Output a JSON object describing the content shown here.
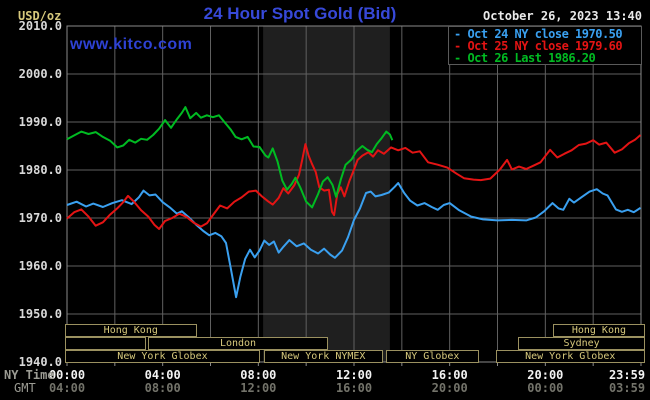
{
  "header": {
    "units_label": "USD/oz",
    "title": "24 Hour Spot Gold (Bid)",
    "datetime": "October 26, 2023 13:40",
    "watermark": "www.kitco.com"
  },
  "colors": {
    "background": "#000000",
    "grid": "#606060",
    "plot_border": "#8a8a8a",
    "highlight_band": "#1f1f1f",
    "blue": "#3aa0f0",
    "red": "#e41414",
    "green": "#00bb22",
    "khaki_text": "#d6c87c",
    "khaki_border": "#9b9160"
  },
  "legend": {
    "entries": [
      {
        "name": "oct-24-close",
        "label": "- Oct 24 NY close 1970.50",
        "color": "#3aa0f0"
      },
      {
        "name": "oct-25-close",
        "label": "- Oct 25 NY close 1979.60",
        "color": "#e41414"
      },
      {
        "name": "oct-26-last",
        "label": "- Oct 26 Last 1986.20",
        "color": "#00bb22"
      }
    ]
  },
  "x_axis": {
    "ny_caption": "NY Time",
    "gmt_caption": "GMT",
    "ticks": [
      {
        "ny": "00:00",
        "gmt": "04:00",
        "hour": 0
      },
      {
        "ny": "04:00",
        "gmt": "08:00",
        "hour": 4
      },
      {
        "ny": "08:00",
        "gmt": "12:00",
        "hour": 8
      },
      {
        "ny": "12:00",
        "gmt": "16:00",
        "hour": 12
      },
      {
        "ny": "16:00",
        "gmt": "20:00",
        "hour": 16
      },
      {
        "ny": "20:00",
        "gmt": "00:00",
        "hour": 20
      },
      {
        "ny": "23:59",
        "gmt": "03:59",
        "hour": 23.983
      }
    ]
  },
  "y_axis": {
    "ticks": [
      {
        "label": "2010.0",
        "value": 2010
      },
      {
        "label": "2000.0",
        "value": 2000
      },
      {
        "label": "1990.0",
        "value": 1990
      },
      {
        "label": "1980.0",
        "value": 1980
      },
      {
        "label": "1970.0",
        "value": 1970
      },
      {
        "label": "1960.0",
        "value": 1960
      },
      {
        "label": "1950.0",
        "value": 1950
      },
      {
        "label": "1940.0",
        "value": 1940
      }
    ]
  },
  "sessions": [
    {
      "row": 0,
      "label": "Hong Kong",
      "start": 0,
      "end": 5.5
    },
    {
      "row": 0,
      "label": "Hong Kong",
      "start": 20.4,
      "end": 24.25
    },
    {
      "row": 1,
      "label": "",
      "start": 0,
      "end": 3.4
    },
    {
      "row": 1,
      "label": "London",
      "start": 3.47,
      "end": 11.0
    },
    {
      "row": 1,
      "label": "Sydney",
      "start": 18.95,
      "end": 24.25
    },
    {
      "row": 2,
      "label": "New York Globex",
      "start": 0,
      "end": 8.15
    },
    {
      "row": 2,
      "label": "New York NYMEX",
      "start": 8.3,
      "end": 13.3
    },
    {
      "row": 2,
      "label": "NY Globex",
      "start": 13.42,
      "end": 17.3
    },
    {
      "row": 2,
      "label": "New York Globex",
      "start": 18.0,
      "end": 24.25
    }
  ],
  "chart_data": {
    "type": "line",
    "title": "24 Hour Spot Gold (Bid)",
    "xlabel": "NY Time (hours)",
    "ylabel": "USD/oz",
    "xlim_hours": [
      0,
      24
    ],
    "ylim": [
      1940,
      2010
    ],
    "x_grid_interval_hours": 2,
    "y_grid_interval": 10,
    "highlight_hours": [
      8.2,
      13.5
    ],
    "grid": true,
    "legend_position": "top-right",
    "series": [
      {
        "name": "Oct 24 (NY close 1970.50)",
        "color": "#3aa0f0",
        "points": [
          [
            0,
            1972.7
          ],
          [
            0.4,
            1973.4
          ],
          [
            0.8,
            1972.4
          ],
          [
            1.1,
            1973.0
          ],
          [
            1.5,
            1972.3
          ],
          [
            1.9,
            1973.1
          ],
          [
            2.3,
            1973.7
          ],
          [
            2.7,
            1972.9
          ],
          [
            3.0,
            1974.3
          ],
          [
            3.2,
            1975.7
          ],
          [
            3.45,
            1974.7
          ],
          [
            3.7,
            1974.9
          ],
          [
            4.0,
            1973.3
          ],
          [
            4.3,
            1972.2
          ],
          [
            4.6,
            1970.9
          ],
          [
            4.8,
            1971.4
          ],
          [
            5.1,
            1970.1
          ],
          [
            5.4,
            1968.6
          ],
          [
            5.7,
            1967.3
          ],
          [
            5.95,
            1966.4
          ],
          [
            6.2,
            1966.9
          ],
          [
            6.45,
            1966.2
          ],
          [
            6.65,
            1964.8
          ],
          [
            6.85,
            1959.5
          ],
          [
            7.07,
            1953.5
          ],
          [
            7.25,
            1957.8
          ],
          [
            7.45,
            1961.5
          ],
          [
            7.65,
            1963.4
          ],
          [
            7.85,
            1961.8
          ],
          [
            8.05,
            1963.2
          ],
          [
            8.25,
            1965.3
          ],
          [
            8.45,
            1964.4
          ],
          [
            8.65,
            1965.1
          ],
          [
            8.85,
            1962.8
          ],
          [
            9.05,
            1964.0
          ],
          [
            9.3,
            1965.4
          ],
          [
            9.6,
            1964.1
          ],
          [
            9.9,
            1964.7
          ],
          [
            10.2,
            1963.4
          ],
          [
            10.5,
            1962.6
          ],
          [
            10.75,
            1963.6
          ],
          [
            11.0,
            1962.4
          ],
          [
            11.2,
            1961.7
          ],
          [
            11.5,
            1963.2
          ],
          [
            11.75,
            1966.0
          ],
          [
            12.0,
            1969.6
          ],
          [
            12.25,
            1972.0
          ],
          [
            12.5,
            1975.2
          ],
          [
            12.7,
            1975.5
          ],
          [
            12.9,
            1974.5
          ],
          [
            13.15,
            1974.8
          ],
          [
            13.45,
            1975.3
          ],
          [
            13.7,
            1976.5
          ],
          [
            13.85,
            1977.3
          ],
          [
            14.1,
            1975.2
          ],
          [
            14.35,
            1973.6
          ],
          [
            14.65,
            1972.6
          ],
          [
            14.95,
            1973.1
          ],
          [
            15.25,
            1972.3
          ],
          [
            15.5,
            1971.7
          ],
          [
            15.75,
            1972.7
          ],
          [
            16.0,
            1973.1
          ],
          [
            16.4,
            1971.6
          ],
          [
            16.9,
            1970.3
          ],
          [
            17.4,
            1969.7
          ],
          [
            18.0,
            1969.5
          ],
          [
            18.6,
            1969.6
          ],
          [
            19.2,
            1969.5
          ],
          [
            19.6,
            1970.1
          ],
          [
            19.95,
            1971.4
          ],
          [
            20.3,
            1973.1
          ],
          [
            20.55,
            1972.0
          ],
          [
            20.75,
            1971.7
          ],
          [
            21.0,
            1974.0
          ],
          [
            21.2,
            1973.2
          ],
          [
            21.5,
            1974.3
          ],
          [
            21.85,
            1975.5
          ],
          [
            22.15,
            1976.0
          ],
          [
            22.4,
            1975.1
          ],
          [
            22.6,
            1974.7
          ],
          [
            22.95,
            1971.8
          ],
          [
            23.2,
            1971.3
          ],
          [
            23.45,
            1971.7
          ],
          [
            23.7,
            1971.2
          ],
          [
            23.98,
            1972.1
          ]
        ]
      },
      {
        "name": "Oct 25 (NY close 1979.60)",
        "color": "#e41414",
        "points": [
          [
            0,
            1969.9
          ],
          [
            0.3,
            1971.2
          ],
          [
            0.6,
            1971.8
          ],
          [
            0.9,
            1970.3
          ],
          [
            1.2,
            1968.4
          ],
          [
            1.5,
            1969.1
          ],
          [
            1.8,
            1970.7
          ],
          [
            2.1,
            1972.0
          ],
          [
            2.35,
            1973.3
          ],
          [
            2.55,
            1974.6
          ],
          [
            2.8,
            1973.4
          ],
          [
            3.1,
            1971.6
          ],
          [
            3.4,
            1970.3
          ],
          [
            3.65,
            1968.6
          ],
          [
            3.85,
            1967.7
          ],
          [
            4.1,
            1969.4
          ],
          [
            4.4,
            1970.0
          ],
          [
            4.7,
            1970.9
          ],
          [
            5.0,
            1970.2
          ],
          [
            5.3,
            1969.0
          ],
          [
            5.6,
            1968.2
          ],
          [
            5.85,
            1968.9
          ],
          [
            6.1,
            1970.6
          ],
          [
            6.4,
            1972.6
          ],
          [
            6.7,
            1972.0
          ],
          [
            7.0,
            1973.4
          ],
          [
            7.3,
            1974.3
          ],
          [
            7.6,
            1975.5
          ],
          [
            7.9,
            1975.7
          ],
          [
            8.15,
            1974.5
          ],
          [
            8.4,
            1973.5
          ],
          [
            8.6,
            1972.8
          ],
          [
            8.85,
            1974.2
          ],
          [
            9.05,
            1976.2
          ],
          [
            9.25,
            1975.1
          ],
          [
            9.5,
            1976.8
          ],
          [
            9.7,
            1979.0
          ],
          [
            9.85,
            1982.5
          ],
          [
            9.97,
            1985.4
          ],
          [
            10.1,
            1983.0
          ],
          [
            10.25,
            1981.2
          ],
          [
            10.4,
            1979.6
          ],
          [
            10.55,
            1976.4
          ],
          [
            10.75,
            1975.7
          ],
          [
            10.95,
            1975.9
          ],
          [
            11.08,
            1971.3
          ],
          [
            11.17,
            1970.6
          ],
          [
            11.3,
            1975.0
          ],
          [
            11.45,
            1976.4
          ],
          [
            11.6,
            1974.5
          ],
          [
            11.8,
            1977.6
          ],
          [
            12.0,
            1980.1
          ],
          [
            12.15,
            1982.1
          ],
          [
            12.35,
            1983.0
          ],
          [
            12.6,
            1983.7
          ],
          [
            12.8,
            1982.8
          ],
          [
            13.0,
            1984.1
          ],
          [
            13.25,
            1983.4
          ],
          [
            13.55,
            1984.7
          ],
          [
            13.85,
            1984.1
          ],
          [
            14.15,
            1984.6
          ],
          [
            14.45,
            1983.6
          ],
          [
            14.75,
            1983.9
          ],
          [
            15.1,
            1981.6
          ],
          [
            15.5,
            1981.1
          ],
          [
            15.9,
            1980.5
          ],
          [
            16.3,
            1979.2
          ],
          [
            16.6,
            1978.3
          ],
          [
            17.0,
            1978.0
          ],
          [
            17.3,
            1977.9
          ],
          [
            17.7,
            1978.2
          ],
          [
            18.1,
            1980.1
          ],
          [
            18.4,
            1982.1
          ],
          [
            18.6,
            1980.1
          ],
          [
            18.9,
            1980.7
          ],
          [
            19.2,
            1980.2
          ],
          [
            19.5,
            1980.9
          ],
          [
            19.8,
            1981.6
          ],
          [
            20.2,
            1984.2
          ],
          [
            20.5,
            1982.6
          ],
          [
            20.8,
            1983.4
          ],
          [
            21.1,
            1984.1
          ],
          [
            21.4,
            1985.2
          ],
          [
            21.7,
            1985.5
          ],
          [
            22.0,
            1986.2
          ],
          [
            22.25,
            1985.3
          ],
          [
            22.55,
            1985.7
          ],
          [
            22.9,
            1983.6
          ],
          [
            23.2,
            1984.3
          ],
          [
            23.5,
            1985.6
          ],
          [
            23.75,
            1986.3
          ],
          [
            23.98,
            1987.3
          ]
        ]
      },
      {
        "name": "Oct 26 (Last 1986.20)",
        "color": "#00bb22",
        "points": [
          [
            0,
            1986.4
          ],
          [
            0.3,
            1987.2
          ],
          [
            0.6,
            1988.0
          ],
          [
            0.9,
            1987.5
          ],
          [
            1.2,
            1987.9
          ],
          [
            1.5,
            1986.9
          ],
          [
            1.8,
            1986.1
          ],
          [
            2.1,
            1984.7
          ],
          [
            2.35,
            1985.1
          ],
          [
            2.6,
            1986.3
          ],
          [
            2.85,
            1985.7
          ],
          [
            3.1,
            1986.5
          ],
          [
            3.35,
            1986.3
          ],
          [
            3.6,
            1987.3
          ],
          [
            3.85,
            1988.6
          ],
          [
            4.1,
            1990.4
          ],
          [
            4.35,
            1988.8
          ],
          [
            4.6,
            1990.6
          ],
          [
            4.8,
            1991.9
          ],
          [
            4.95,
            1993.1
          ],
          [
            5.15,
            1990.8
          ],
          [
            5.4,
            1991.9
          ],
          [
            5.6,
            1990.9
          ],
          [
            5.85,
            1991.4
          ],
          [
            6.1,
            1991.0
          ],
          [
            6.35,
            1991.4
          ],
          [
            6.6,
            1989.9
          ],
          [
            6.85,
            1988.4
          ],
          [
            7.05,
            1986.9
          ],
          [
            7.3,
            1986.4
          ],
          [
            7.55,
            1986.9
          ],
          [
            7.8,
            1984.9
          ],
          [
            8.05,
            1984.8
          ],
          [
            8.3,
            1983.0
          ],
          [
            8.42,
            1982.6
          ],
          [
            8.6,
            1984.5
          ],
          [
            8.8,
            1981.8
          ],
          [
            9.0,
            1977.8
          ],
          [
            9.2,
            1975.9
          ],
          [
            9.4,
            1977.1
          ],
          [
            9.55,
            1978.4
          ],
          [
            9.75,
            1976.4
          ],
          [
            10.0,
            1973.4
          ],
          [
            10.25,
            1972.2
          ],
          [
            10.5,
            1975.0
          ],
          [
            10.7,
            1977.6
          ],
          [
            10.9,
            1978.5
          ],
          [
            11.1,
            1976.9
          ],
          [
            11.25,
            1974.4
          ],
          [
            11.45,
            1978.0
          ],
          [
            11.65,
            1981.1
          ],
          [
            11.9,
            1982.2
          ],
          [
            12.1,
            1983.9
          ],
          [
            12.35,
            1985.0
          ],
          [
            12.55,
            1984.2
          ],
          [
            12.75,
            1983.7
          ],
          [
            12.95,
            1985.4
          ],
          [
            13.15,
            1986.6
          ],
          [
            13.35,
            1988.0
          ],
          [
            13.5,
            1987.4
          ],
          [
            13.6,
            1986.2
          ]
        ]
      }
    ]
  }
}
